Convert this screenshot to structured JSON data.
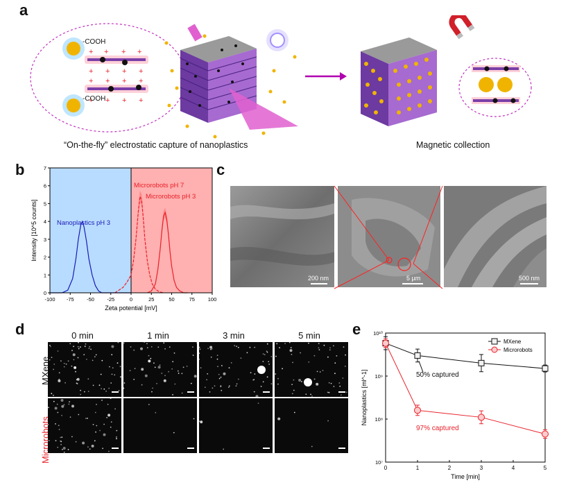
{
  "panels": {
    "a": {
      "label": "a",
      "caption_left": "“On-the-fly” electrostatic capture of nanoplastics",
      "caption_right": "Magnetic collection",
      "group_label": "-COOH",
      "charge_plus": "+",
      "charge_minus": "−"
    },
    "b": {
      "label": "b",
      "annotations": [
        "Nanoplastics pH 3",
        "Microrobots pH 7",
        "Microrobots pH 3"
      ]
    },
    "c": {
      "label": "c",
      "scalebars": [
        "200 nm",
        "5 µm",
        "500 nm"
      ]
    },
    "d": {
      "label": "d",
      "times": [
        "0 min",
        "1 min",
        "3 min",
        "5 min"
      ],
      "rows": [
        "MXene",
        "Microrobots"
      ]
    },
    "e": {
      "label": "e",
      "annotations": [
        "50% captured",
        "97% captured"
      ]
    }
  },
  "colors": {
    "blue": "#1a1ab8",
    "red": "#e8202a",
    "purple": "#8a4bb8",
    "magenta": "#c020c0",
    "gold": "#f0b400",
    "blue_bg": "#b8dcff",
    "red_bg": "#ffb0b0"
  },
  "chart_data": [
    {
      "id": "b",
      "type": "line",
      "xlabel": "Zeta potential [mV]",
      "ylabel": "Intensity [10^5 counts]",
      "xlim": [
        -100,
        100
      ],
      "ylim": [
        0,
        7
      ],
      "xticks": [
        -100,
        -75,
        -50,
        -25,
        0,
        25,
        50,
        75,
        100
      ],
      "yticks": [
        0,
        1,
        2,
        3,
        4,
        5,
        6,
        7
      ],
      "regions": [
        {
          "x": [
            -100,
            0
          ],
          "color": "#b8dcff"
        },
        {
          "x": [
            0,
            100
          ],
          "color": "#ffb0b0"
        }
      ],
      "series": [
        {
          "name": "Nanoplastics pH 3",
          "color": "#1a1ab8",
          "style": "solid",
          "x": [
            -100,
            -85,
            -78,
            -72,
            -68,
            -65,
            -62,
            -60,
            -58,
            -55,
            -52,
            -48,
            -44,
            -40,
            -36,
            -30,
            0
          ],
          "y": [
            0,
            0,
            0.15,
            0.8,
            1.9,
            3.0,
            3.8,
            4.0,
            3.7,
            2.9,
            1.9,
            1.0,
            0.4,
            0.1,
            0.0,
            0.0,
            0
          ]
        },
        {
          "name": "Microrobots pH 7",
          "color": "#e8202a",
          "style": "dashed",
          "x": [
            -20,
            -10,
            -5,
            0,
            3,
            6,
            9,
            11,
            13,
            15,
            17,
            20,
            23,
            26,
            30,
            35,
            40
          ],
          "y": [
            0,
            0.3,
            0.6,
            1.0,
            1.8,
            3.0,
            4.6,
            5.4,
            5.2,
            4.2,
            3.0,
            1.8,
            1.0,
            0.5,
            0.2,
            0.05,
            0
          ]
        },
        {
          "name": "Microrobots pH 3",
          "color": "#e8202a",
          "style": "solid",
          "x": [
            20,
            25,
            30,
            33,
            36,
            38,
            40,
            42,
            44,
            46,
            48,
            50,
            53,
            56,
            60,
            65,
            70
          ],
          "y": [
            0,
            0.1,
            0.5,
            1.3,
            2.5,
            3.5,
            4.3,
            4.5,
            4.1,
            3.3,
            2.3,
            1.5,
            0.7,
            0.3,
            0.1,
            0.0,
            0
          ]
        }
      ]
    },
    {
      "id": "e",
      "type": "line",
      "xlabel": "Time [min]",
      "ylabel": "Nanoplastics [ml^-1]",
      "xlim": [
        0,
        5
      ],
      "ylim": [
        10000000,
        10000000000
      ],
      "yscale": "log",
      "xticks": [
        0,
        1,
        2,
        3,
        4,
        5
      ],
      "yticks": [
        10000000,
        100000000,
        1000000000,
        10000000000
      ],
      "ytick_labels": [
        "10⁷",
        "10⁸",
        "10⁹",
        "10¹⁰"
      ],
      "legend_position": "top-right",
      "series": [
        {
          "name": "MXene",
          "color": "#111111",
          "marker": "square",
          "x": [
            0,
            1,
            3,
            5
          ],
          "y": [
            5800000000,
            3000000000,
            2000000000,
            1500000000
          ],
          "err": [
            0.15,
            0.15,
            0.2,
            0.08
          ]
        },
        {
          "name": "Microrobots",
          "color": "#e8202a",
          "marker": "circle",
          "x": [
            0,
            1,
            3,
            5
          ],
          "y": [
            5800000000,
            160000000,
            110000000,
            45000000
          ],
          "err": [
            0.1,
            0.12,
            0.15,
            0.1
          ]
        }
      ]
    }
  ]
}
